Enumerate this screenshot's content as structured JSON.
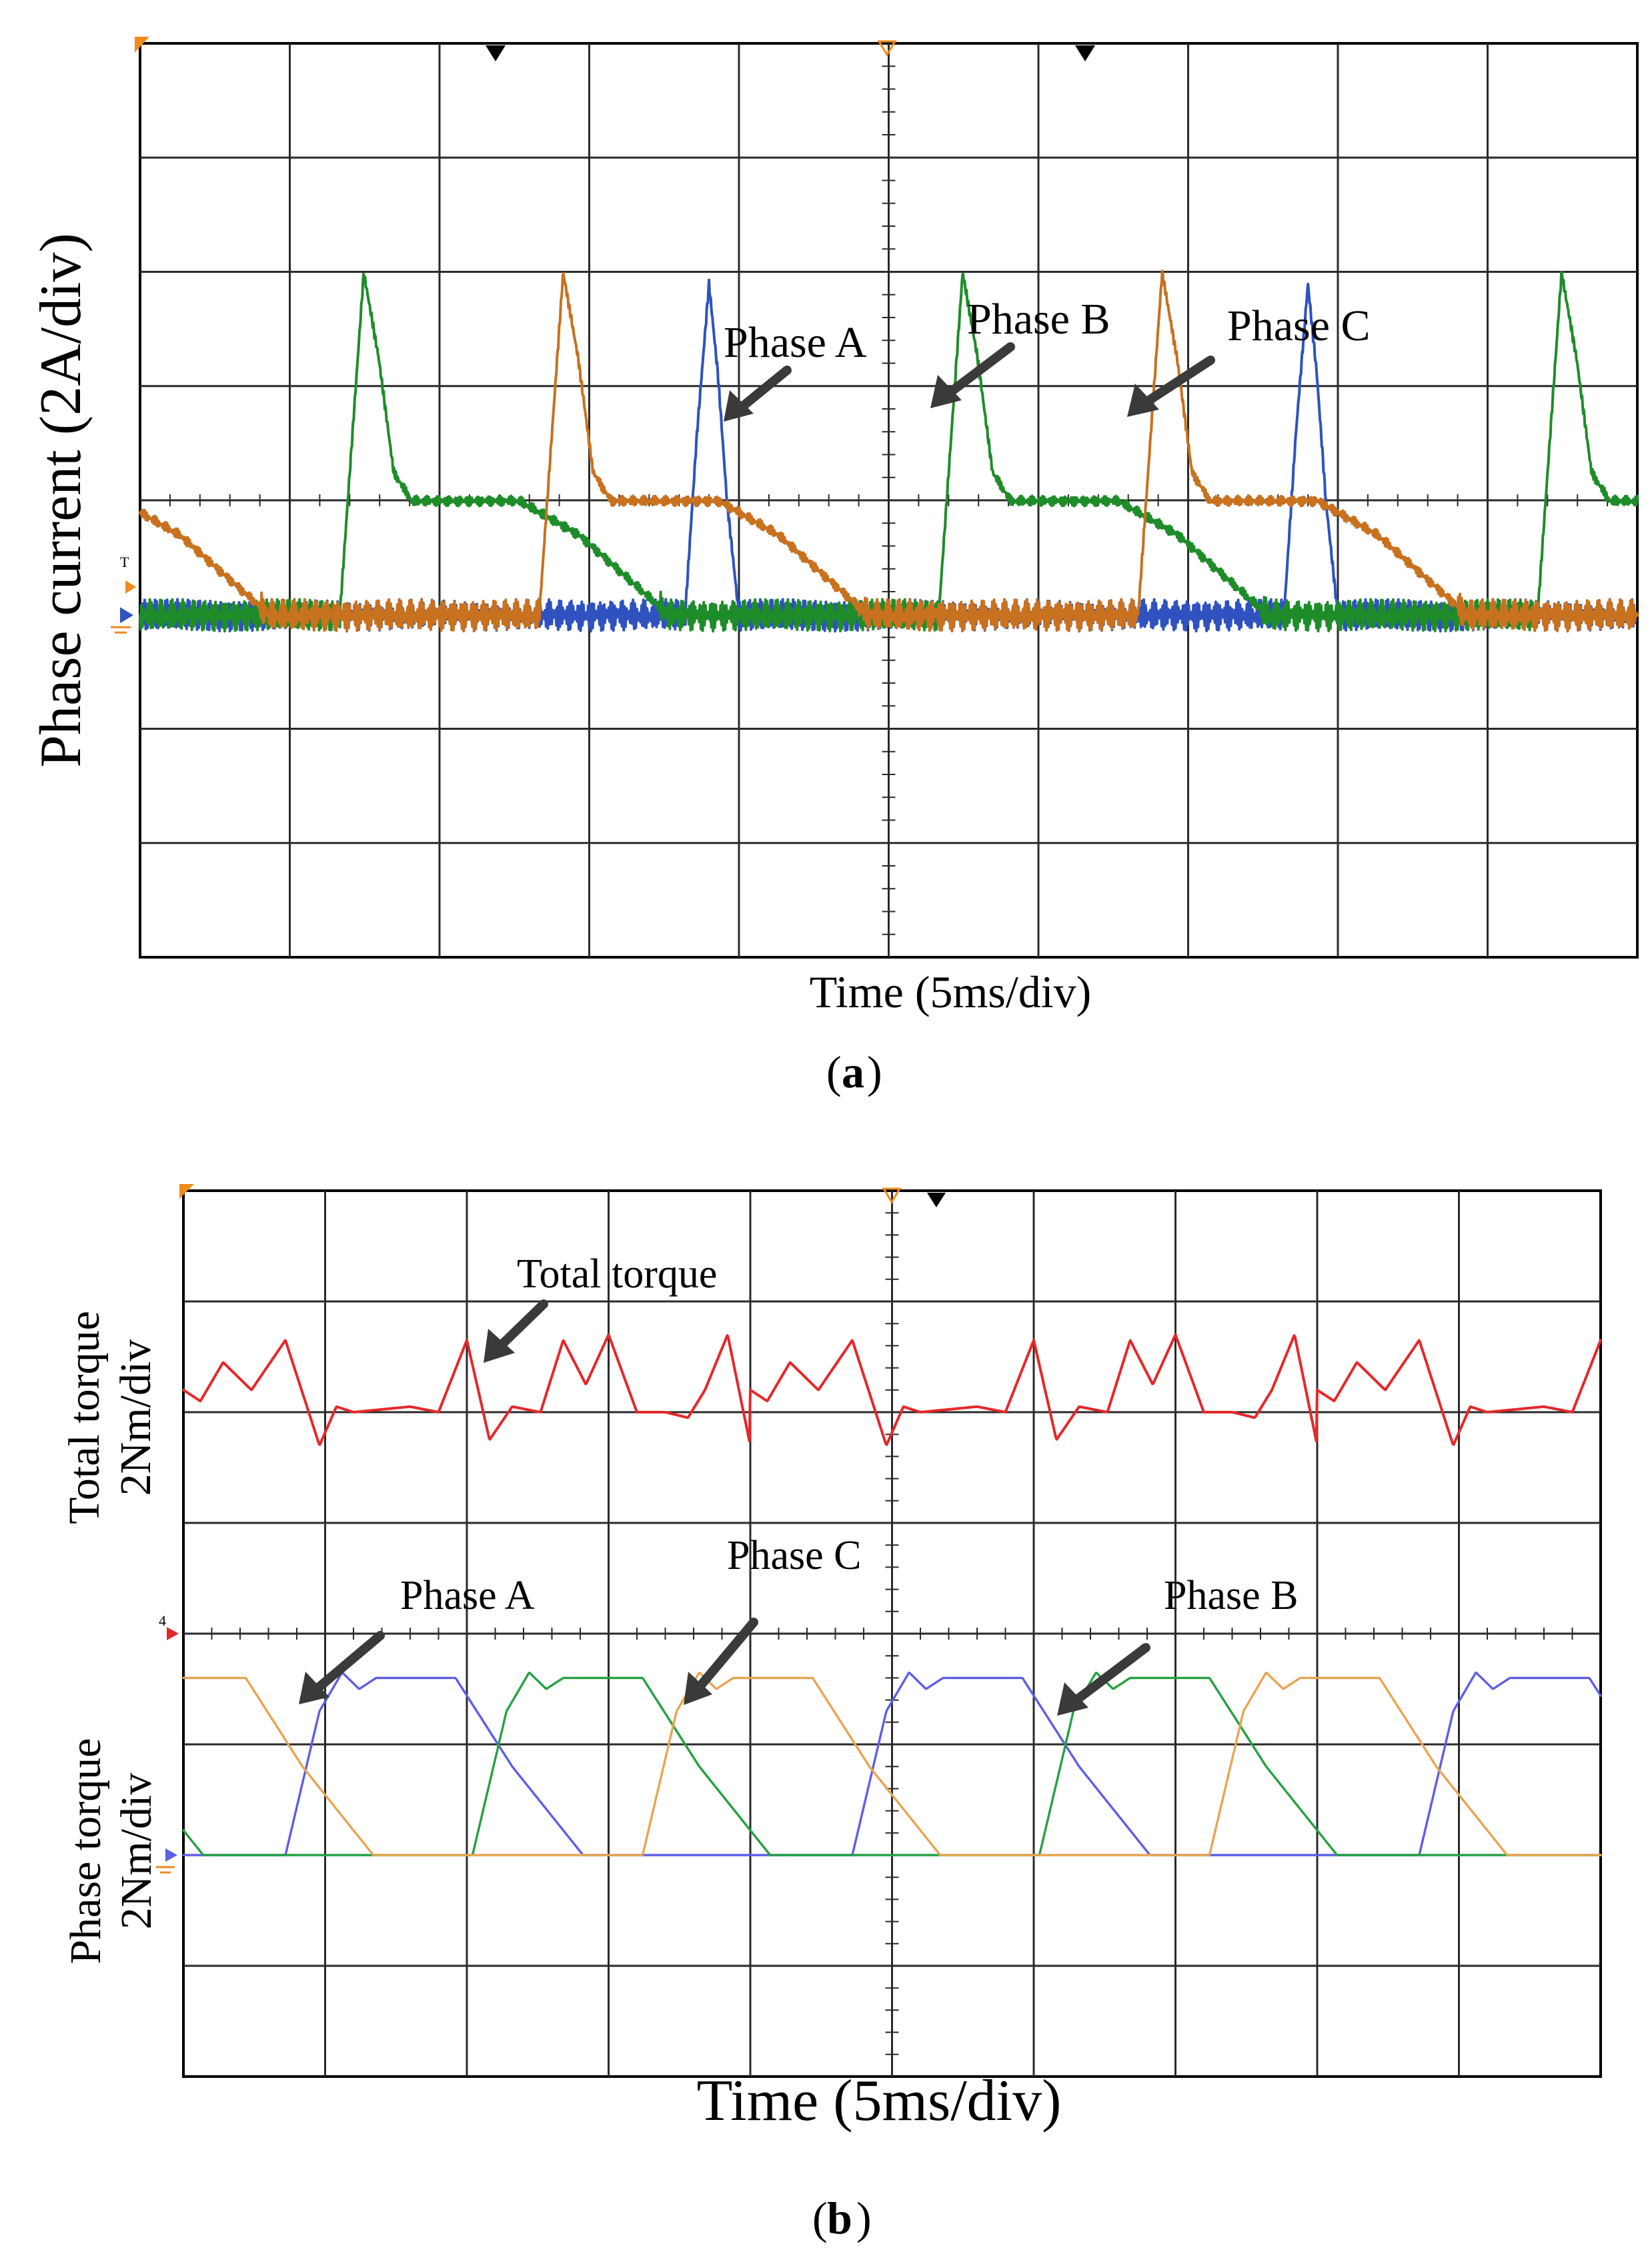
{
  "colors": {
    "phase_a": "#2f52c0",
    "phase_b": "#1f8c2a",
    "phase_c": "#c8711f",
    "total": "#e4282b",
    "phase_a_torque": "#5e5ee6",
    "phase_b_torque": "#25a043",
    "phase_c_torque": "#e7a552",
    "marker_orange": "#f08a1c",
    "grid": "#2a2a2a"
  },
  "chart_data": [
    {
      "id": "a",
      "type": "line",
      "caption": "a",
      "xlabel": "Time (5ms/div)",
      "ylabel": "Phase current (2A/div)",
      "x_unit": "ms",
      "y_unit": "A",
      "xlim": [
        0,
        50
      ],
      "ylim": [
        -1,
        7
      ],
      "grid": true,
      "annotations": [
        "Phase A",
        "Phase B",
        "Phase C"
      ],
      "series": [
        {
          "name": "Phase A",
          "period": 20,
          "phase_offset": 0,
          "waveform": {
            "t": [
              0,
              0.8,
              1.4,
              5.0,
              9.0,
              12.0,
              13.0,
              18.2,
              18.6,
              19.0,
              19.3,
              19.6,
              20.0
            ],
            "i": [
              0,
              0,
              0,
              0,
              0,
              0,
              0,
              0,
              3.2,
              5.8,
              4.2,
              2.0,
              0
            ]
          }
        },
        {
          "name": "Phase B",
          "period": 20,
          "phase_offset": 6.67,
          "waveform": {
            "t": [
              0,
              0.4,
              0.8,
              1.3,
              1.8,
              2.4,
              3.0,
              6.0,
              8.0,
              11.0,
              12.5,
              20.0
            ],
            "i": [
              0,
              3.0,
              6.0,
              4.5,
              2.5,
              2.0,
              2.0,
              2.0,
              1.4,
              0,
              0,
              0
            ]
          }
        },
        {
          "name": "Phase C",
          "period": 20,
          "phase_offset": 13.33,
          "waveform": {
            "t": [
              0,
              0.4,
              0.8,
              1.3,
              1.8,
              2.4,
              3.0,
              6.0,
              8.0,
              11.0,
              12.5,
              20.0
            ],
            "i": [
              0,
              3.0,
              6.0,
              4.5,
              2.5,
              2.0,
              2.0,
              2.0,
              1.4,
              0,
              0,
              0
            ]
          }
        }
      ]
    },
    {
      "id": "b",
      "type": "line",
      "caption": "b",
      "xlabel": "Time (5ms/div)",
      "ylabel_top": "Total torque 2Nm/div",
      "ylabel_bottom": "Phase torque 2Nm/div",
      "x_unit": "ms",
      "y_unit": "Nm",
      "xlim": [
        0,
        50
      ],
      "ylim_top": [
        -2,
        6
      ],
      "ylim_bottom": [
        -1,
        5
      ],
      "grid": true,
      "annotations": [
        "Total torque",
        "Phase A",
        "Phase C",
        "Phase B"
      ],
      "total_torque": {
        "name": "Total torque",
        "t": [
          0,
          0.6,
          1.4,
          2.4,
          3.6,
          4.8,
          5.4,
          6.0,
          8.0,
          9.0,
          10.0,
          10.8,
          11.6,
          12.6,
          13.4,
          14.2,
          15.0,
          16.0,
          17.0,
          17.8,
          18.4,
          19.2,
          20.0
        ],
        "v": [
          0.4,
          0.2,
          0.9,
          0.4,
          1.3,
          -0.6,
          0.1,
          0.0,
          0.1,
          0.0,
          1.3,
          -0.5,
          0.1,
          0.0,
          1.3,
          0.5,
          1.4,
          0.0,
          0.0,
          -0.1,
          0.4,
          1.4,
          -0.6
        ],
        "period": 20
      },
      "series": [
        {
          "name": "Phase A",
          "period": 20,
          "phase_offset": 3.6,
          "waveform": {
            "t": [
              0,
              1.2,
              2.0,
              2.6,
              3.2,
              6.0,
              8.0,
              10.5,
              20.0
            ],
            "v": [
              0,
              2.6,
              3.3,
              3.0,
              3.2,
              3.2,
              1.6,
              0,
              0
            ]
          }
        },
        {
          "name": "Phase B",
          "period": 20,
          "phase_offset": 10.2,
          "waveform": {
            "t": [
              0,
              1.2,
              2.0,
              2.6,
              3.2,
              6.0,
              8.0,
              10.5,
              20.0
            ],
            "v": [
              0,
              2.6,
              3.3,
              3.0,
              3.2,
              3.2,
              1.6,
              0,
              0
            ]
          }
        },
        {
          "name": "Phase C",
          "period": 20,
          "phase_offset": 16.2,
          "waveform": {
            "t": [
              0,
              1.2,
              2.0,
              2.6,
              3.2,
              6.0,
              8.0,
              10.5,
              20.0
            ],
            "v": [
              0,
              2.6,
              3.3,
              3.0,
              3.2,
              3.2,
              1.6,
              0,
              0
            ]
          }
        }
      ]
    }
  ]
}
